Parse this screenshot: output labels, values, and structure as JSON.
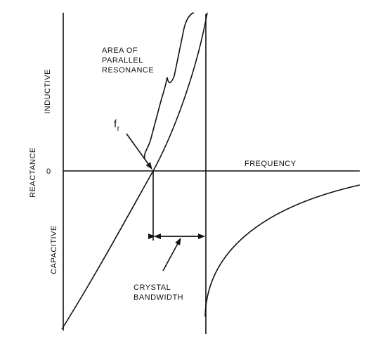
{
  "labels": {
    "y_axis": "REACTANCE",
    "upper": "INDUCTIVE",
    "lower": "CAPACITIVE",
    "zero": "0",
    "x_axis": "FREQUENCY",
    "fr": "f",
    "fr_sub": "r",
    "area": [
      "AREA OF",
      "PARALLEL",
      "RESONANCE"
    ],
    "bandwidth": [
      "CRYSTAL",
      "BANDWIDTH"
    ]
  }
}
